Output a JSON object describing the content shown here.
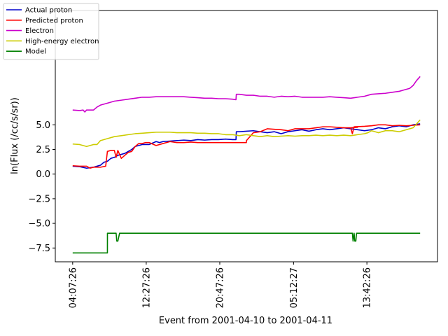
{
  "chart_data": {
    "type": "line",
    "xlabel": "Event from 2001-04-10 to 2001-04-11",
    "ylabel": "ln(Flux (/cc/s/sr))",
    "ylim": [
      -8.9,
      16.6
    ],
    "xlim": [
      -0.05,
      1.05
    ],
    "x_ticks": [
      {
        "pos": 0.0,
        "label": "04:07:26"
      },
      {
        "pos": 0.2117,
        "label": "12:27:26"
      },
      {
        "pos": 0.4234,
        "label": "20:47:26"
      },
      {
        "pos": 0.6357,
        "label": "05:12:27"
      },
      {
        "pos": 0.8468,
        "label": "13:42:26"
      }
    ],
    "y_ticks": [
      {
        "value": -7.5,
        "label": "−7.5"
      },
      {
        "value": -5.0,
        "label": "−5.0"
      },
      {
        "value": -2.5,
        "label": "−2.5"
      },
      {
        "value": 0.0,
        "label": "0.0"
      },
      {
        "value": 2.5,
        "label": "2.5"
      },
      {
        "value": 5.0,
        "label": "5.0"
      }
    ],
    "legend_position": "top-left",
    "series": [
      {
        "name": "Actual proton",
        "color": "#0000cc",
        "x": [
          0.0,
          0.02,
          0.04,
          0.06,
          0.07,
          0.08,
          0.09,
          0.1,
          0.11,
          0.12,
          0.13,
          0.14,
          0.15,
          0.16,
          0.17,
          0.18,
          0.2,
          0.22,
          0.24,
          0.25,
          0.26,
          0.28,
          0.3,
          0.32,
          0.34,
          0.36,
          0.38,
          0.4,
          0.42,
          0.44,
          0.46,
          0.47,
          0.471,
          0.48,
          0.5,
          0.52,
          0.54,
          0.56,
          0.58,
          0.6,
          0.62,
          0.64,
          0.66,
          0.68,
          0.7,
          0.72,
          0.74,
          0.76,
          0.78,
          0.8,
          0.82,
          0.84,
          0.86,
          0.88,
          0.9,
          0.92,
          0.94,
          0.96,
          0.98,
          1.0
        ],
        "y": [
          0.8,
          0.75,
          0.6,
          0.7,
          0.8,
          0.9,
          1.2,
          1.3,
          1.6,
          1.7,
          1.9,
          2.0,
          2.1,
          2.3,
          2.5,
          2.8,
          3.0,
          3.0,
          3.3,
          3.2,
          3.3,
          3.35,
          3.4,
          3.45,
          3.4,
          3.5,
          3.45,
          3.5,
          3.5,
          3.55,
          3.5,
          3.5,
          4.3,
          4.3,
          4.35,
          4.4,
          4.3,
          4.2,
          4.3,
          4.1,
          4.3,
          4.4,
          4.5,
          4.35,
          4.5,
          4.6,
          4.5,
          4.6,
          4.7,
          4.6,
          4.5,
          4.4,
          4.5,
          4.7,
          4.6,
          4.8,
          4.9,
          4.8,
          5.0,
          5.1
        ]
      },
      {
        "name": "Predicted proton",
        "color": "#ff0000",
        "x": [
          0.0,
          0.02,
          0.04,
          0.05,
          0.06,
          0.08,
          0.095,
          0.1,
          0.11,
          0.12,
          0.125,
          0.13,
          0.14,
          0.15,
          0.16,
          0.17,
          0.18,
          0.19,
          0.2,
          0.21,
          0.22,
          0.24,
          0.26,
          0.28,
          0.3,
          0.32,
          0.34,
          0.36,
          0.38,
          0.4,
          0.42,
          0.44,
          0.46,
          0.48,
          0.5,
          0.5001,
          0.52,
          0.54,
          0.56,
          0.58,
          0.6,
          0.62,
          0.64,
          0.66,
          0.68,
          0.7,
          0.72,
          0.74,
          0.76,
          0.78,
          0.8,
          0.82,
          0.8,
          0.805,
          0.81,
          0.84,
          0.86,
          0.88,
          0.9,
          0.92,
          0.94,
          0.96,
          0.98,
          1.0
        ],
        "y": [
          0.85,
          0.8,
          0.8,
          0.6,
          0.7,
          0.7,
          0.8,
          2.3,
          2.4,
          2.4,
          1.7,
          2.4,
          1.6,
          1.9,
          2.2,
          2.3,
          2.8,
          3.1,
          3.1,
          3.2,
          3.2,
          2.9,
          3.1,
          3.3,
          3.2,
          3.2,
          3.25,
          3.2,
          3.2,
          3.2,
          3.2,
          3.2,
          3.2,
          3.2,
          3.2,
          3.4,
          4.2,
          4.3,
          4.6,
          4.55,
          4.5,
          4.4,
          4.6,
          4.6,
          4.6,
          4.7,
          4.8,
          4.8,
          4.75,
          4.7,
          4.7,
          4.75,
          4.7,
          4.1,
          4.8,
          4.85,
          4.9,
          5.0,
          5.0,
          4.9,
          4.95,
          4.9,
          4.95,
          5.0
        ]
      },
      {
        "name": "Electron",
        "color": "#cc00cc",
        "x": [
          0.0,
          0.02,
          0.03,
          0.035,
          0.04,
          0.06,
          0.07,
          0.08,
          0.1,
          0.12,
          0.14,
          0.16,
          0.18,
          0.2,
          0.22,
          0.24,
          0.26,
          0.28,
          0.3,
          0.32,
          0.34,
          0.36,
          0.38,
          0.4,
          0.42,
          0.44,
          0.46,
          0.47,
          0.471,
          0.48,
          0.5,
          0.52,
          0.54,
          0.56,
          0.58,
          0.6,
          0.62,
          0.64,
          0.66,
          0.68,
          0.7,
          0.72,
          0.74,
          0.76,
          0.78,
          0.8,
          0.82,
          0.84,
          0.86,
          0.88,
          0.9,
          0.92,
          0.94,
          0.95,
          0.96,
          0.97,
          0.98,
          0.99,
          1.0
        ],
        "y": [
          6.5,
          6.45,
          6.5,
          6.3,
          6.5,
          6.5,
          6.8,
          7.0,
          7.2,
          7.4,
          7.5,
          7.6,
          7.7,
          7.8,
          7.8,
          7.85,
          7.85,
          7.85,
          7.85,
          7.85,
          7.8,
          7.75,
          7.7,
          7.7,
          7.65,
          7.65,
          7.6,
          7.55,
          8.1,
          8.1,
          8.0,
          8.0,
          7.9,
          7.9,
          7.8,
          7.9,
          7.85,
          7.9,
          7.8,
          7.8,
          7.8,
          7.8,
          7.85,
          7.8,
          7.75,
          7.7,
          7.8,
          7.9,
          8.1,
          8.15,
          8.2,
          8.3,
          8.4,
          8.5,
          8.6,
          8.7,
          9.0,
          9.5,
          9.9
        ]
      },
      {
        "name": "High-energy electron",
        "color": "#cccc00",
        "x": [
          0.0,
          0.02,
          0.03,
          0.04,
          0.06,
          0.07,
          0.08,
          0.1,
          0.12,
          0.14,
          0.16,
          0.18,
          0.2,
          0.22,
          0.24,
          0.26,
          0.28,
          0.3,
          0.32,
          0.34,
          0.36,
          0.38,
          0.4,
          0.42,
          0.44,
          0.46,
          0.48,
          0.5,
          0.52,
          0.54,
          0.56,
          0.58,
          0.6,
          0.62,
          0.64,
          0.66,
          0.68,
          0.7,
          0.72,
          0.74,
          0.76,
          0.78,
          0.8,
          0.82,
          0.84,
          0.85,
          0.86,
          0.87,
          0.88,
          0.9,
          0.92,
          0.94,
          0.96,
          0.98,
          1.0
        ],
        "y": [
          3.05,
          3.0,
          2.9,
          2.8,
          3.0,
          3.0,
          3.4,
          3.6,
          3.8,
          3.9,
          4.0,
          4.1,
          4.15,
          4.2,
          4.25,
          4.25,
          4.25,
          4.2,
          4.2,
          4.2,
          4.15,
          4.15,
          4.1,
          4.1,
          4.0,
          4.0,
          3.9,
          4.0,
          3.9,
          3.8,
          3.9,
          3.8,
          3.85,
          3.9,
          3.85,
          3.9,
          3.9,
          3.95,
          3.9,
          3.95,
          3.9,
          3.95,
          3.9,
          4.0,
          4.1,
          4.2,
          4.4,
          4.3,
          4.2,
          4.4,
          4.4,
          4.3,
          4.5,
          4.7,
          5.5
        ]
      },
      {
        "name": "Model",
        "color": "#008000",
        "x": [
          0.0,
          0.1,
          0.1001,
          0.12,
          0.125,
          0.127,
          0.13,
          0.135,
          0.14,
          0.2,
          0.3,
          0.4,
          0.5,
          0.6,
          0.7,
          0.8,
          0.805,
          0.807,
          0.81,
          0.812,
          0.815,
          0.817,
          0.82,
          0.9,
          1.0
        ],
        "y": [
          -8.0,
          -8.0,
          -6.0,
          -6.0,
          -6.0,
          -6.8,
          -6.8,
          -6.0,
          -6.0,
          -6.0,
          -6.0,
          -6.0,
          -6.0,
          -6.0,
          -6.0,
          -6.0,
          -6.0,
          -6.8,
          -6.0,
          -6.8,
          -6.8,
          -6.0,
          -6.0,
          -6.0,
          -6.0
        ]
      }
    ]
  }
}
